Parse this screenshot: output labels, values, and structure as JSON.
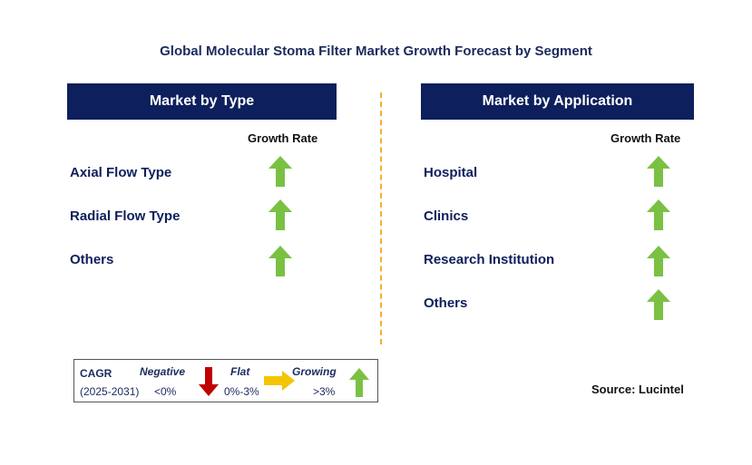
{
  "title": "Global Molecular Stoma Filter Market Growth Forecast by Segment",
  "left_panel": {
    "header": "Market by Type",
    "growth_label": "Growth Rate",
    "rows": [
      {
        "label": "Axial Flow Type",
        "trend": "growing"
      },
      {
        "label": "Radial Flow Type",
        "trend": "growing"
      },
      {
        "label": "Others",
        "trend": "growing"
      }
    ]
  },
  "right_panel": {
    "header": "Market by Application",
    "growth_label": "Growth Rate",
    "rows": [
      {
        "label": "Hospital",
        "trend": "growing"
      },
      {
        "label": "Clinics",
        "trend": "growing"
      },
      {
        "label": "Research Institution",
        "trend": "growing"
      },
      {
        "label": "Others",
        "trend": "growing"
      }
    ]
  },
  "legend": {
    "cagr_label": "CAGR",
    "period": "(2025-2031)",
    "negative": {
      "label": "Negative",
      "range": "<0%"
    },
    "flat": {
      "label": "Flat",
      "range": "0%-3%"
    },
    "growing": {
      "label": "Growing",
      "range": ">3%"
    }
  },
  "source": "Source: Lucintel",
  "colors": {
    "header_bg": "#0d1f5c",
    "growing_arrow": "#7ac143",
    "flat_arrow": "#f5c400",
    "negative_arrow": "#c00000",
    "divider": "#f2b02c"
  }
}
